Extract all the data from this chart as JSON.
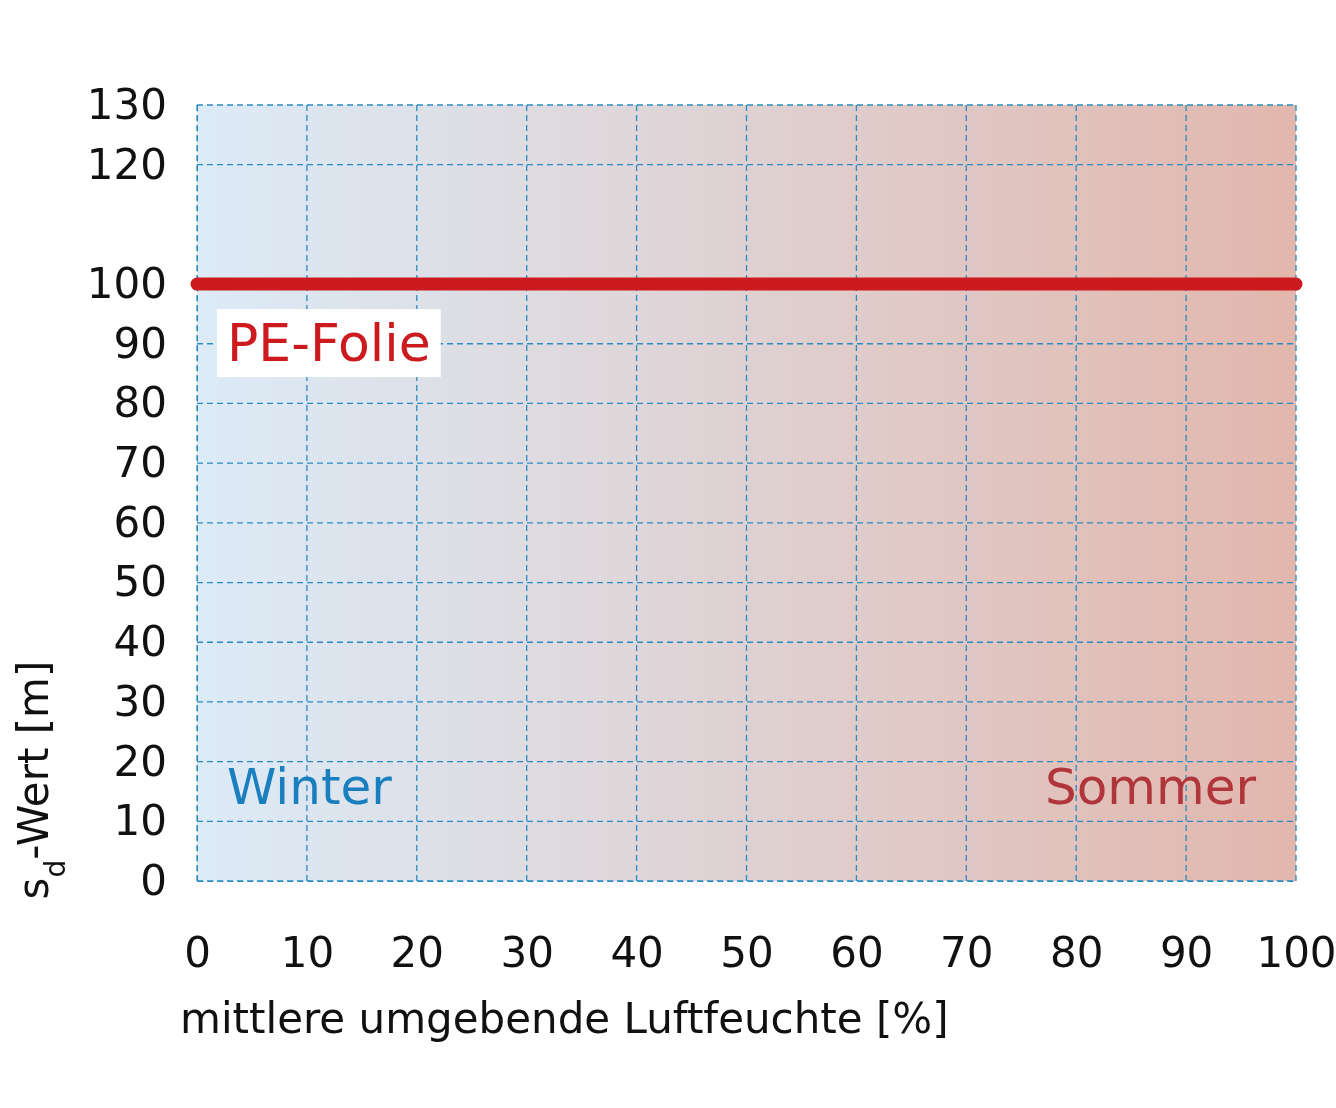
{
  "chart_data": {
    "type": "line",
    "xlabel": "mittlere umgebende Luftfeuchte [%]",
    "ylabel": "s$_{d}$-Wert [m]",
    "x": [
      0,
      100
    ],
    "series": [
      {
        "name": "PE-Folie",
        "color": "#cc1a1f",
        "values": [
          100,
          100
        ]
      }
    ],
    "xlim": [
      0,
      100
    ],
    "xticks": [
      0,
      10,
      20,
      30,
      40,
      50,
      60,
      70,
      80,
      90,
      100
    ],
    "ylim": [
      0,
      130
    ],
    "yticks": [
      0,
      10,
      20,
      30,
      40,
      50,
      60,
      70,
      80,
      90,
      100,
      120,
      130
    ],
    "grid": true,
    "marker": "none",
    "line_style": "solid",
    "annotations": [
      "Winter",
      "Sommer"
    ]
  }
}
